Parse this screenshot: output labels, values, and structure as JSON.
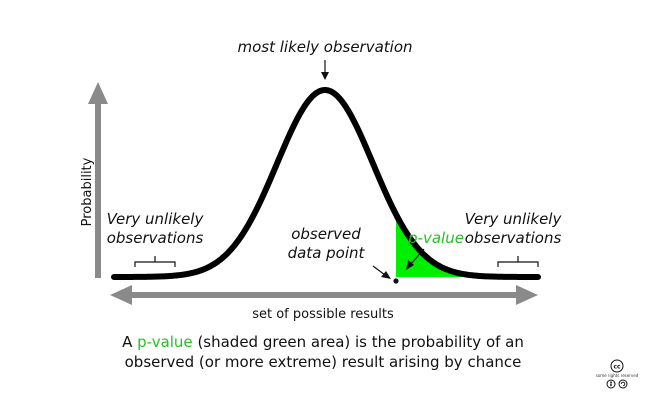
{
  "labels": {
    "peak": "most likely observation",
    "y_axis": "Probability",
    "x_axis": "set of possible results",
    "left_tail_line1": "Very unlikely",
    "left_tail_line2": "observations",
    "right_tail_line1": "Very unlikely",
    "right_tail_line2": "observations",
    "observed_line1": "observed",
    "observed_line2": "data point",
    "p_value_tag": "p-value"
  },
  "caption": {
    "line1_prefix": "A ",
    "line1_highlight": "p-value",
    "line1_suffix": " (shaded green area) is the probability of an",
    "line2": "observed (or more extreme) result arising by chance"
  },
  "license": {
    "symbol": "cc",
    "text": "some rights reserved",
    "icons": [
      "by-icon",
      "sa-icon"
    ]
  },
  "colors": {
    "curve": "#000000",
    "axis": "#8a8a8a",
    "shade": "#00ee00",
    "highlight": "#22c322",
    "text": "#111111"
  }
}
